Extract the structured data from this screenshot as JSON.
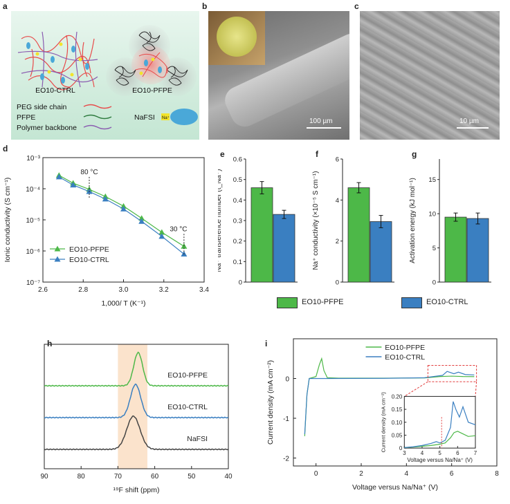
{
  "panel_letters": {
    "a": "a",
    "b": "b",
    "c": "c",
    "d": "d",
    "e": "e",
    "f": "f",
    "g": "g",
    "h": "h",
    "i": "i"
  },
  "schematic": {
    "left_label": "EO10-CTRL",
    "right_label": "EO10-PFPE",
    "legend": [
      "PEG side chain",
      "PFPE",
      "Polymer backbone"
    ],
    "salt_label": "NaFSI",
    "na_label": "Na⁺",
    "colors": {
      "peg": "#e84a4a",
      "pfpe": "#2d7a3e",
      "backbone": "#8a5bb0",
      "salt": "#4aa8d8",
      "yellow": "#f2e42b",
      "bg": "#d4eee0"
    }
  },
  "sem": {
    "b_scale": "100 µm",
    "c_scale": "10 µm"
  },
  "colors": {
    "pfpe": "#4db848",
    "ctrl": "#3a7fc1"
  },
  "shared_legend": {
    "pfpe": "EO10-PFPE",
    "ctrl": "EO10-CTRL"
  },
  "chart_data": [
    {
      "id": "d",
      "type": "line",
      "xlabel": "1,000/ T (K⁻¹)",
      "ylabel": "Ionic conductivity (S cm⁻¹)",
      "xlim": [
        2.6,
        3.4
      ],
      "xticks": [
        2.6,
        2.8,
        3.0,
        3.2,
        3.4
      ],
      "ylim_log": [
        -7,
        -3
      ],
      "yticks_log": [
        -7,
        -6,
        -5,
        -4,
        -3
      ],
      "annotations": [
        {
          "text": "80 °C",
          "x": 2.83
        },
        {
          "text": "30 °C",
          "x": 3.3
        }
      ],
      "series": [
        {
          "name": "EO10-PFPE",
          "color": "#4db848",
          "marker": "triangle",
          "x": [
            2.68,
            2.75,
            2.83,
            2.91,
            3.0,
            3.09,
            3.19,
            3.3
          ],
          "logy": [
            -3.57,
            -3.82,
            -4.02,
            -4.25,
            -4.56,
            -4.95,
            -5.4,
            -5.85
          ]
        },
        {
          "name": "EO10-CTRL",
          "color": "#3a7fc1",
          "marker": "triangle",
          "x": [
            2.68,
            2.75,
            2.83,
            2.91,
            3.0,
            3.09,
            3.19,
            3.3
          ],
          "logy": [
            -3.62,
            -3.88,
            -4.09,
            -4.33,
            -4.65,
            -5.05,
            -5.53,
            -6.1
          ]
        }
      ]
    },
    {
      "id": "e",
      "type": "bar",
      "ylabel": "Na⁺ transference number (t_Na⁺)",
      "ylim": [
        0,
        0.6
      ],
      "yticks": [
        0,
        0.1,
        0.2,
        0.3,
        0.4,
        0.5,
        0.6
      ],
      "values": [
        0.46,
        0.33
      ],
      "errors": [
        0.03,
        0.02
      ],
      "names": [
        "EO10-PFPE",
        "EO10-CTRL"
      ]
    },
    {
      "id": "f",
      "type": "bar",
      "ylabel": "Na⁺ conductivity (×10⁻⁵ S cm⁻¹)",
      "ylim": [
        0,
        6
      ],
      "yticks": [
        0,
        2,
        4,
        6
      ],
      "values": [
        4.6,
        2.95
      ],
      "errors": [
        0.25,
        0.3
      ],
      "names": [
        "EO10-PFPE",
        "EO10-CTRL"
      ]
    },
    {
      "id": "g",
      "type": "bar",
      "ylabel": "Activation energy (kJ mol⁻¹)",
      "ylim": [
        0,
        18
      ],
      "yticks": [
        0,
        5,
        10,
        15
      ],
      "values": [
        9.5,
        9.3
      ],
      "errors": [
        0.6,
        0.8
      ],
      "names": [
        "EO10-PFPE",
        "EO10-CTRL"
      ]
    },
    {
      "id": "h",
      "type": "line",
      "xlabel": "¹⁹F shift (ppm)",
      "xlim": [
        90,
        40
      ],
      "xticks": [
        90,
        80,
        70,
        60,
        50,
        40
      ],
      "band": [
        70,
        62
      ],
      "series": [
        {
          "name": "EO10-PFPE",
          "color": "#4db848",
          "center": 64.5,
          "width": 1.2
        },
        {
          "name": "EO10-CTRL",
          "color": "#3a7fc1",
          "center": 65.2,
          "width": 1.4
        },
        {
          "name": "NaFSI",
          "color": "#444444",
          "center": 65.8,
          "width": 1.8
        }
      ]
    },
    {
      "id": "i",
      "type": "line",
      "xlabel": "Voltage versus Na/Na⁺ (V)",
      "ylabel": "Current density (mA cm⁻²)",
      "xlim": [
        -1,
        8
      ],
      "xticks": [
        0,
        2,
        4,
        6,
        8
      ],
      "ylim": [
        -2.2,
        1
      ],
      "yticks": [
        -2,
        -1,
        0
      ],
      "legend": [
        "EO10-PFPE",
        "EO10-CTRL"
      ],
      "inset": {
        "xlabel": "Voltage versus Na/Na⁺ (V)",
        "ylabel": "Current density (mA cm⁻²)",
        "xlim": [
          3,
          7
        ],
        "xticks": [
          3,
          4,
          5,
          6,
          7
        ],
        "ylim": [
          0,
          0.2
        ],
        "yticks": [
          0,
          0.05,
          0.1,
          0.15,
          0.2
        ],
        "pfpe_x": [
          3.0,
          3.5,
          4.0,
          4.5,
          5.0,
          5.3,
          5.6,
          5.8,
          6.0,
          6.3,
          6.6,
          7.0
        ],
        "pfpe_y": [
          0.002,
          0.004,
          0.007,
          0.01,
          0.015,
          0.02,
          0.04,
          0.06,
          0.065,
          0.055,
          0.045,
          0.048
        ],
        "ctrl_x": [
          3.0,
          3.5,
          4.0,
          4.5,
          4.8,
          5.0,
          5.3,
          5.6,
          5.75,
          5.9,
          6.1,
          6.3,
          6.6,
          7.0
        ],
        "ctrl_y": [
          0.002,
          0.005,
          0.01,
          0.018,
          0.025,
          0.02,
          0.03,
          0.08,
          0.18,
          0.15,
          0.12,
          0.16,
          0.1,
          0.09
        ]
      }
    }
  ]
}
